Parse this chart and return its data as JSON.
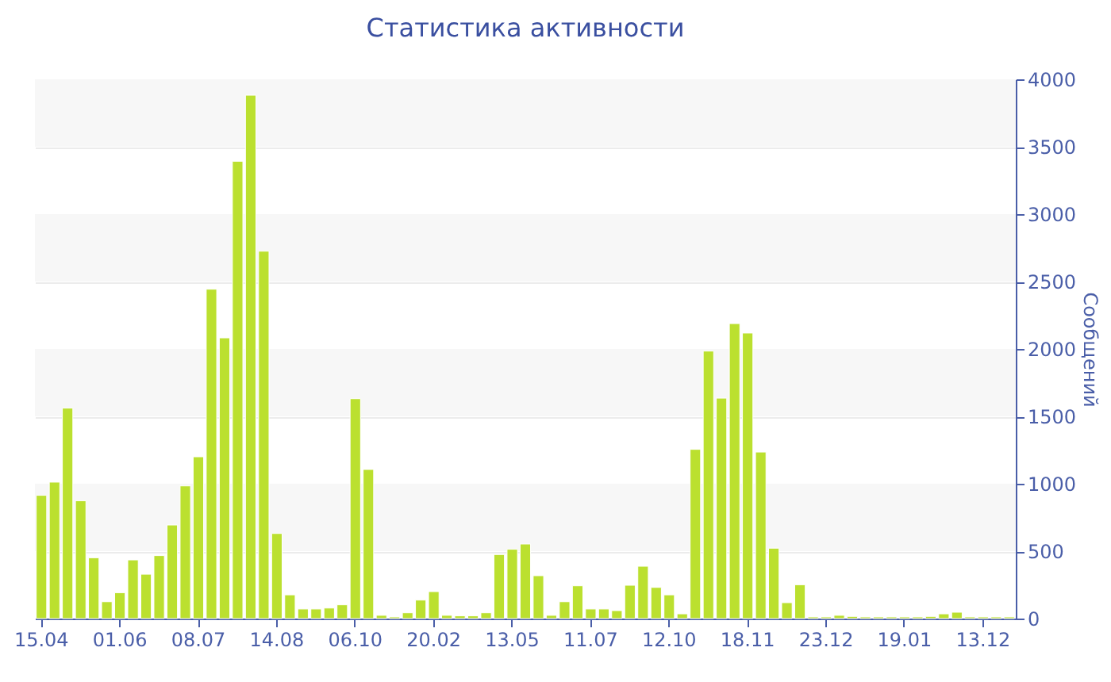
{
  "chart_data": {
    "type": "bar",
    "title": "Статистика активности",
    "ylabel": "Сообщений",
    "categories": [
      "15.04",
      null,
      null,
      null,
      null,
      null,
      "01.06",
      null,
      null,
      null,
      null,
      null,
      "08.07",
      null,
      null,
      null,
      null,
      null,
      "14.08",
      null,
      null,
      null,
      null,
      null,
      "06.10",
      null,
      null,
      null,
      null,
      null,
      "20.02",
      null,
      null,
      null,
      null,
      null,
      "13.05",
      null,
      null,
      null,
      null,
      null,
      "11.07",
      null,
      null,
      null,
      null,
      null,
      "12.10",
      null,
      null,
      null,
      null,
      null,
      "18.11",
      null,
      null,
      null,
      null,
      null,
      "23.12",
      null,
      null,
      null,
      null,
      null,
      "19.01",
      null,
      null,
      null,
      null,
      null,
      "13.12",
      null,
      null
    ],
    "values": [
      914,
      1012,
      1561,
      874,
      451,
      125,
      192,
      435,
      329,
      467,
      694,
      984,
      1200,
      2443,
      2082,
      3392,
      3882,
      2725,
      631,
      176,
      71,
      71,
      78,
      102,
      1631,
      1106,
      24,
      12,
      43,
      137,
      200,
      24,
      20,
      20,
      43,
      475,
      514,
      553,
      318,
      24,
      125,
      243,
      71,
      71,
      59,
      247,
      388,
      231,
      176,
      35,
      1255,
      1984,
      1635,
      2188,
      2118,
      1235,
      522,
      118,
      251,
      12,
      12,
      24,
      16,
      12,
      12,
      12,
      12,
      12,
      16,
      35,
      47,
      12,
      12,
      12,
      12
    ],
    "color": "#bbe02f",
    "ylim": [
      0,
      4000
    ],
    "yticks": [
      0,
      500,
      1000,
      1500,
      2000,
      2500,
      3000,
      3500,
      4000
    ],
    "grid": true
  }
}
